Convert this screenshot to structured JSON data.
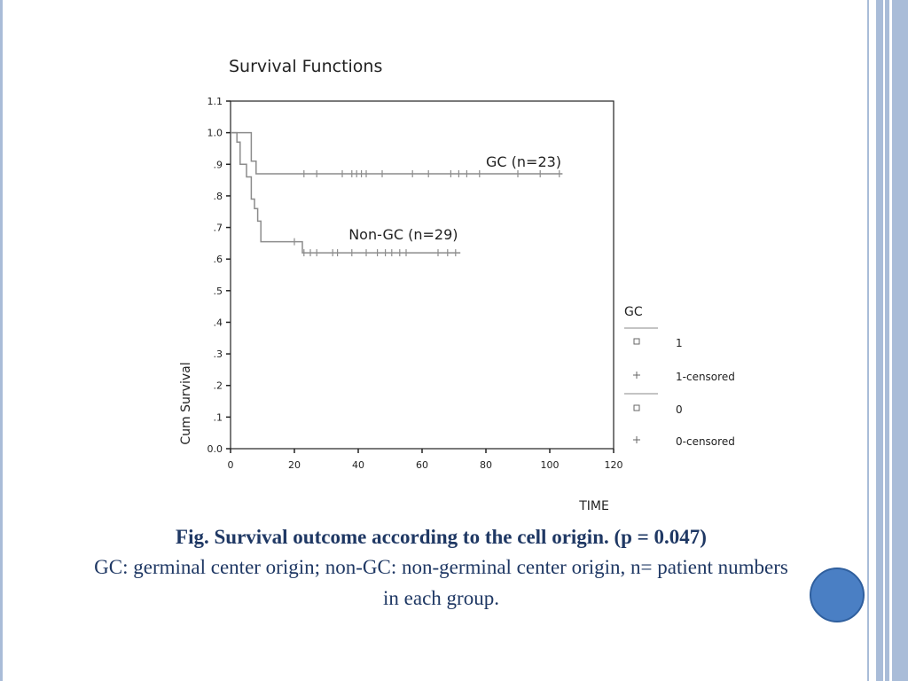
{
  "chart_data": {
    "type": "line",
    "title": "Survival Functions",
    "xlabel": "TIME",
    "ylabel": "Cum Survival",
    "xlim": [
      0,
      120
    ],
    "ylim": [
      0.0,
      1.1
    ],
    "x_ticks": [
      "0",
      "20",
      "40",
      "60",
      "80",
      "100",
      "120"
    ],
    "y_ticks": [
      "0.0",
      ".1",
      ".2",
      ".3",
      ".4",
      ".5",
      ".6",
      ".7",
      ".8",
      ".9",
      "1.0",
      "1.1"
    ],
    "legend_position": "right",
    "legend": {
      "title": "GC",
      "entries": [
        {
          "marker": "square",
          "label": "1"
        },
        {
          "marker": "plus",
          "label": "1-censored"
        },
        {
          "marker": "square",
          "label": "0"
        },
        {
          "marker": "plus",
          "label": "0-censored"
        }
      ]
    },
    "series": [
      {
        "name": "GC (n=23)",
        "steps": [
          [
            0,
            1.0
          ],
          [
            6.5,
            1.0
          ],
          [
            6.5,
            0.91
          ],
          [
            8,
            0.91
          ],
          [
            8,
            0.87
          ],
          [
            104,
            0.87
          ]
        ],
        "censored": [
          [
            23,
            0.87
          ],
          [
            27,
            0.87
          ],
          [
            35,
            0.87
          ],
          [
            38,
            0.87
          ],
          [
            39.5,
            0.87
          ],
          [
            41,
            0.87
          ],
          [
            42.5,
            0.87
          ],
          [
            47.5,
            0.87
          ],
          [
            57,
            0.87
          ],
          [
            62,
            0.87
          ],
          [
            69,
            0.87
          ],
          [
            71.5,
            0.87
          ],
          [
            74,
            0.87
          ],
          [
            78,
            0.87
          ],
          [
            90,
            0.87
          ],
          [
            97,
            0.87
          ],
          [
            103,
            0.87
          ]
        ]
      },
      {
        "name": "Non-GC  (n=29)",
        "steps": [
          [
            0,
            1.0
          ],
          [
            2,
            1.0
          ],
          [
            2,
            0.97
          ],
          [
            3,
            0.97
          ],
          [
            3,
            0.9
          ],
          [
            5,
            0.9
          ],
          [
            5,
            0.86
          ],
          [
            6.5,
            0.86
          ],
          [
            6.5,
            0.79
          ],
          [
            7.5,
            0.79
          ],
          [
            7.5,
            0.76
          ],
          [
            8.5,
            0.76
          ],
          [
            8.5,
            0.72
          ],
          [
            9.5,
            0.72
          ],
          [
            9.5,
            0.655
          ],
          [
            22.5,
            0.655
          ],
          [
            22.5,
            0.62
          ],
          [
            72,
            0.62
          ]
        ],
        "censored": [
          [
            20,
            0.655
          ],
          [
            23,
            0.62
          ],
          [
            25,
            0.62
          ],
          [
            27,
            0.62
          ],
          [
            32,
            0.62
          ],
          [
            33.5,
            0.62
          ],
          [
            38,
            0.62
          ],
          [
            42.5,
            0.62
          ],
          [
            46,
            0.62
          ],
          [
            48.5,
            0.62
          ],
          [
            50.5,
            0.62
          ],
          [
            53,
            0.62
          ],
          [
            55,
            0.62
          ],
          [
            65,
            0.62
          ],
          [
            68,
            0.62
          ],
          [
            70.5,
            0.62
          ]
        ]
      }
    ]
  },
  "caption": {
    "bold_text": "Fig.  Survival outcome according to the cell origin. (p = 0.047)",
    "normal_text": "GC: germinal center origin; non-GC: non-germinal center origin, n= patient numbers in each group."
  },
  "colors": {
    "caption": "#1f3864",
    "line": "#8c8c8c",
    "axis": "#222222",
    "bullet": "#4a7fc4"
  }
}
